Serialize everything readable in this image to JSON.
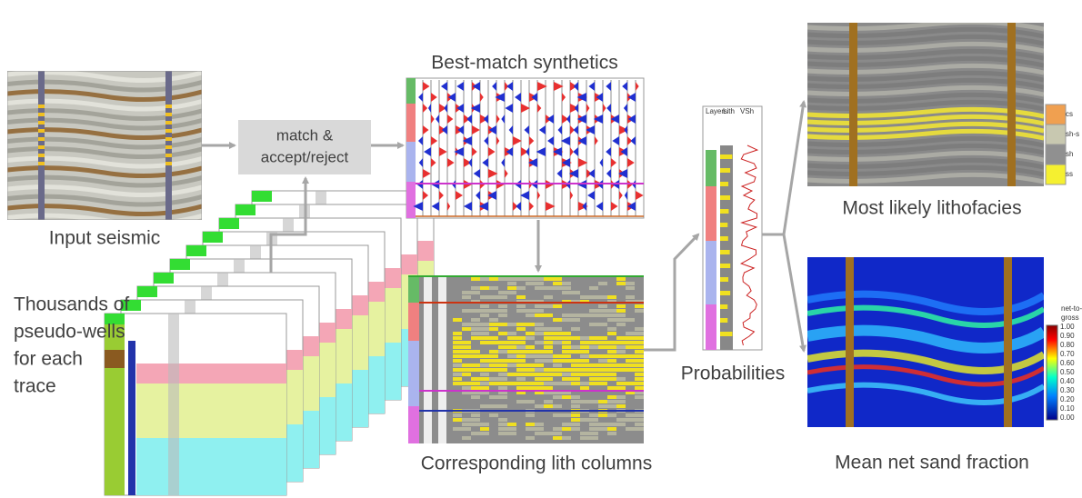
{
  "labels": {
    "input_seismic": "Input seismic",
    "process": [
      "match &",
      "accept/reject"
    ],
    "synthetics": "Best-match synthetics",
    "lith_columns": "Corresponding lith columns",
    "pseudo_wells": [
      "Thousands of",
      "pseudo-wells",
      "for each",
      "trace"
    ],
    "probabilities": "Probabilities",
    "lithofacies": "Most likely lithofacies",
    "net_sand": "Mean net sand fraction"
  },
  "log_headers": [
    "Layers",
    "Lith",
    "VSh"
  ],
  "facies_legend": [
    "cs",
    "sh-s",
    "sh",
    "ss"
  ],
  "ntg_legend": {
    "title": [
      "net-to-",
      "gross"
    ],
    "ticks": [
      "1.00",
      "0.90",
      "0.80",
      "0.70",
      "0.60",
      "0.50",
      "0.40",
      "0.30",
      "0.20",
      "0.10",
      "0.00"
    ]
  }
}
